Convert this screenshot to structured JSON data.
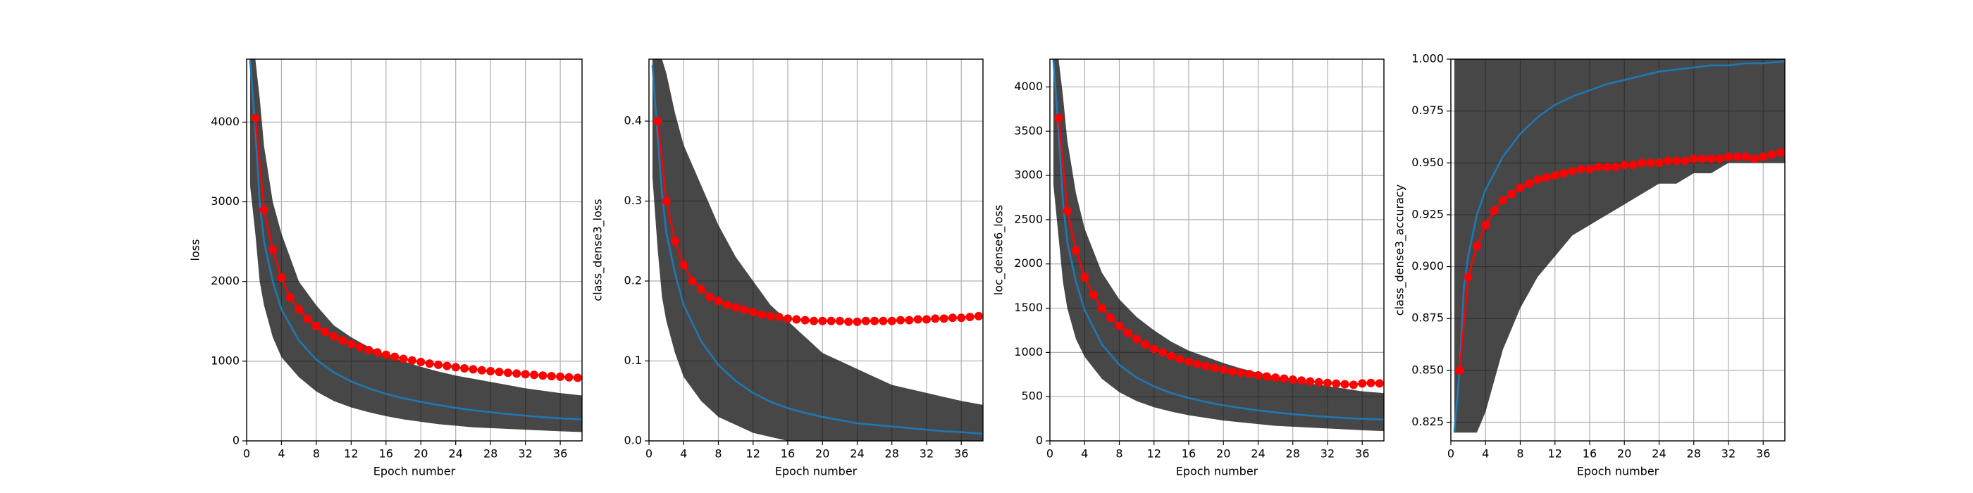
{
  "chart_data": [
    {
      "type": "line",
      "xlabel": "Epoch number",
      "ylabel": "loss",
      "xlim": [
        0,
        38.5
      ],
      "xticks": [
        0,
        4,
        8,
        12,
        16,
        20,
        24,
        28,
        32,
        36
      ],
      "ylim": [
        0,
        4790
      ],
      "yticks": [
        0,
        1000,
        2000,
        3000,
        4000
      ],
      "grid": true,
      "band": {
        "color": "#000000",
        "x": [
          0.4,
          1,
          1.5,
          2,
          3,
          4,
          6,
          8,
          10,
          12,
          14,
          16,
          18,
          20,
          22,
          24,
          26,
          28,
          30,
          32,
          34,
          36,
          38.5
        ],
        "lower": [
          3200,
          2600,
          2000,
          1700,
          1300,
          1050,
          800,
          620,
          500,
          420,
          360,
          310,
          270,
          240,
          210,
          190,
          170,
          160,
          150,
          140,
          130,
          120,
          110
        ],
        "upper": [
          4790,
          4790,
          4300,
          3700,
          3000,
          2600,
          2000,
          1700,
          1450,
          1300,
          1180,
          1080,
          1000,
          930,
          870,
          820,
          780,
          740,
          700,
          660,
          630,
          600,
          570
        ]
      },
      "series": [
        {
          "color": "#1f77b4",
          "marker": false,
          "x": [
            0.4,
            1,
            1.5,
            2,
            3,
            4,
            6,
            8,
            10,
            12,
            14,
            16,
            18,
            20,
            22,
            24,
            26,
            28,
            30,
            32,
            34,
            36,
            38.5
          ],
          "values": [
            4780,
            3900,
            3000,
            2500,
            2000,
            1650,
            1260,
            1020,
            860,
            745,
            660,
            590,
            535,
            490,
            450,
            415,
            385,
            360,
            337,
            316,
            298,
            283,
            270
          ]
        },
        {
          "color": "#ff0000",
          "marker": true,
          "x": [
            1,
            2,
            3,
            4,
            5,
            6,
            7,
            8,
            9,
            10,
            11,
            12,
            13,
            14,
            15,
            16,
            17,
            18,
            19,
            20,
            21,
            22,
            23,
            24,
            25,
            26,
            27,
            28,
            29,
            30,
            31,
            32,
            33,
            34,
            35,
            36,
            37,
            38
          ],
          "values": [
            4050,
            2900,
            2400,
            2050,
            1800,
            1650,
            1530,
            1440,
            1370,
            1310,
            1260,
            1215,
            1175,
            1140,
            1110,
            1080,
            1055,
            1030,
            1010,
            990,
            970,
            955,
            940,
            925,
            910,
            898,
            886,
            875,
            865,
            855,
            845,
            836,
            828,
            820,
            812,
            805,
            798,
            792
          ]
        }
      ]
    },
    {
      "type": "line",
      "xlabel": "Epoch number",
      "ylabel": "class_dense3_loss",
      "xlim": [
        0,
        38.5
      ],
      "xticks": [
        0,
        4,
        8,
        12,
        16,
        20,
        24,
        28,
        32,
        36
      ],
      "ylim": [
        0,
        0.4775
      ],
      "yticks": [
        {
          "value": 0,
          "label": "0.0"
        },
        0.1,
        0.2,
        0.3,
        0.4
      ],
      "grid": true,
      "band": {
        "color": "#000000",
        "x": [
          0.4,
          1,
          1.5,
          2,
          3,
          4,
          6,
          8,
          10,
          12,
          14,
          16,
          18,
          20,
          22,
          24,
          26,
          28,
          30,
          32,
          34,
          36,
          38.5
        ],
        "lower": [
          0.33,
          0.24,
          0.18,
          0.15,
          0.11,
          0.08,
          0.05,
          0.03,
          0.02,
          0.01,
          0.005,
          0,
          0,
          0,
          0,
          0,
          0,
          0,
          0,
          0,
          0,
          0,
          0
        ],
        "upper": [
          0.4775,
          0.4775,
          0.4775,
          0.46,
          0.41,
          0.37,
          0.32,
          0.27,
          0.23,
          0.2,
          0.17,
          0.15,
          0.13,
          0.11,
          0.1,
          0.09,
          0.08,
          0.07,
          0.065,
          0.06,
          0.055,
          0.05,
          0.045
        ]
      },
      "series": [
        {
          "color": "#1f77b4",
          "marker": false,
          "x": [
            0.4,
            1,
            1.5,
            2,
            3,
            4,
            6,
            8,
            10,
            12,
            14,
            16,
            18,
            20,
            22,
            24,
            26,
            28,
            30,
            32,
            34,
            36,
            38.5
          ],
          "values": [
            0.47,
            0.38,
            0.31,
            0.26,
            0.21,
            0.17,
            0.125,
            0.095,
            0.075,
            0.06,
            0.049,
            0.041,
            0.035,
            0.03,
            0.026,
            0.022,
            0.02,
            0.018,
            0.016,
            0.014,
            0.012,
            0.011,
            0.009
          ]
        },
        {
          "color": "#ff0000",
          "marker": true,
          "x": [
            1,
            2,
            3,
            4,
            5,
            6,
            7,
            8,
            9,
            10,
            11,
            12,
            13,
            14,
            15,
            16,
            17,
            18,
            19,
            20,
            21,
            22,
            23,
            24,
            25,
            26,
            27,
            28,
            29,
            30,
            31,
            32,
            33,
            34,
            35,
            36,
            37,
            38
          ],
          "values": [
            0.4,
            0.3,
            0.25,
            0.22,
            0.2,
            0.19,
            0.18,
            0.175,
            0.17,
            0.167,
            0.164,
            0.161,
            0.158,
            0.156,
            0.155,
            0.153,
            0.152,
            0.151,
            0.15,
            0.15,
            0.15,
            0.15,
            0.149,
            0.149,
            0.15,
            0.15,
            0.15,
            0.15,
            0.151,
            0.151,
            0.152,
            0.152,
            0.153,
            0.153,
            0.154,
            0.154,
            0.155,
            0.156
          ]
        }
      ]
    },
    {
      "type": "line",
      "xlabel": "Epoch number",
      "ylabel": "loc_dense6_loss",
      "xlim": [
        0,
        38.5
      ],
      "xticks": [
        0,
        4,
        8,
        12,
        16,
        20,
        24,
        28,
        32,
        36
      ],
      "ylim": [
        0,
        4314
      ],
      "yticks": [
        0,
        500,
        1000,
        1500,
        2000,
        2500,
        3000,
        3500,
        4000
      ],
      "grid": true,
      "band": {
        "color": "#000000",
        "x": [
          0.4,
          1,
          1.5,
          2,
          3,
          4,
          6,
          8,
          10,
          12,
          14,
          16,
          18,
          20,
          22,
          24,
          26,
          28,
          30,
          32,
          34,
          36,
          38.5
        ],
        "lower": [
          2900,
          2300,
          1800,
          1500,
          1150,
          950,
          700,
          550,
          450,
          380,
          330,
          290,
          260,
          230,
          210,
          190,
          170,
          160,
          150,
          140,
          130,
          120,
          110
        ],
        "upper": [
          4314,
          4314,
          3900,
          3400,
          2800,
          2400,
          1900,
          1600,
          1400,
          1250,
          1120,
          1020,
          950,
          880,
          820,
          770,
          730,
          690,
          650,
          620,
          590,
          560,
          540
        ]
      },
      "series": [
        {
          "color": "#1f77b4",
          "marker": false,
          "x": [
            0.4,
            1,
            1.5,
            2,
            3,
            4,
            6,
            8,
            10,
            12,
            14,
            16,
            18,
            20,
            22,
            24,
            26,
            28,
            30,
            32,
            34,
            36,
            38.5
          ],
          "values": [
            4314,
            3500,
            2700,
            2250,
            1800,
            1480,
            1090,
            860,
            715,
            615,
            540,
            485,
            440,
            402,
            372,
            345,
            322,
            302,
            285,
            271,
            259,
            249,
            241
          ]
        },
        {
          "color": "#ff0000",
          "marker": true,
          "x": [
            1,
            2,
            3,
            4,
            5,
            6,
            7,
            8,
            9,
            10,
            11,
            12,
            13,
            14,
            15,
            16,
            17,
            18,
            19,
            20,
            21,
            22,
            23,
            24,
            25,
            26,
            27,
            28,
            29,
            30,
            31,
            32,
            33,
            34,
            35,
            36,
            37,
            38
          ],
          "values": [
            3650,
            2600,
            2150,
            1850,
            1650,
            1500,
            1390,
            1300,
            1220,
            1150,
            1090,
            1040,
            1000,
            960,
            925,
            895,
            870,
            845,
            825,
            805,
            785,
            770,
            755,
            740,
            727,
            715,
            703,
            692,
            682,
            672,
            663,
            655,
            647,
            640,
            634,
            650,
            655,
            650
          ]
        }
      ]
    },
    {
      "type": "line",
      "xlabel": "Epoch number",
      "ylabel": "class_dense3_accuracy",
      "xlim": [
        0,
        38.5
      ],
      "xticks": [
        0,
        4,
        8,
        12,
        16,
        20,
        24,
        28,
        32,
        36
      ],
      "ylim": [
        0.816,
        1.0
      ],
      "yticks": [
        0.825,
        {
          "value": 0.85,
          "label": "0.850"
        },
        0.875,
        {
          "value": 0.9,
          "label": "0.900"
        },
        0.925,
        {
          "value": 0.95,
          "label": "0.950"
        },
        0.975,
        {
          "value": 1.0,
          "label": "1.000"
        }
      ],
      "grid": true,
      "band": {
        "color": "#000000",
        "x": [
          0.4,
          1,
          1.5,
          2,
          3,
          4,
          6,
          8,
          10,
          12,
          14,
          16,
          18,
          20,
          22,
          24,
          26,
          28,
          30,
          32,
          34,
          36,
          38.5
        ],
        "lower": [
          0.82,
          0.82,
          0.82,
          0.82,
          0.82,
          0.83,
          0.86,
          0.88,
          0.895,
          0.905,
          0.915,
          0.92,
          0.925,
          0.93,
          0.935,
          0.94,
          0.94,
          0.945,
          0.945,
          0.95,
          0.95,
          0.95,
          0.95
        ],
        "upper": [
          1.0,
          1.0,
          1.0,
          1.0,
          1.0,
          1.0,
          1.0,
          1.0,
          1.0,
          1.0,
          1.0,
          1.0,
          1.0,
          1.0,
          1.0,
          1.0,
          1.0,
          1.0,
          1.0,
          1.0,
          1.0,
          1.0,
          1.0
        ]
      },
      "series": [
        {
          "color": "#1f77b4",
          "marker": false,
          "x": [
            0.4,
            1,
            1.5,
            2,
            3,
            4,
            6,
            8,
            10,
            12,
            14,
            16,
            18,
            20,
            22,
            24,
            26,
            28,
            30,
            32,
            34,
            36,
            38.5
          ],
          "values": [
            0.82,
            0.85,
            0.89,
            0.905,
            0.925,
            0.937,
            0.953,
            0.964,
            0.972,
            0.978,
            0.982,
            0.985,
            0.988,
            0.99,
            0.992,
            0.994,
            0.995,
            0.996,
            0.997,
            0.997,
            0.998,
            0.998,
            0.999
          ]
        },
        {
          "color": "#ff0000",
          "marker": true,
          "x": [
            1,
            2,
            3,
            4,
            5,
            6,
            7,
            8,
            9,
            10,
            11,
            12,
            13,
            14,
            15,
            16,
            17,
            18,
            19,
            20,
            21,
            22,
            23,
            24,
            25,
            26,
            27,
            28,
            29,
            30,
            31,
            32,
            33,
            34,
            35,
            36,
            37,
            38
          ],
          "values": [
            0.85,
            0.895,
            0.91,
            0.92,
            0.927,
            0.932,
            0.935,
            0.938,
            0.94,
            0.942,
            0.943,
            0.944,
            0.945,
            0.946,
            0.947,
            0.947,
            0.948,
            0.948,
            0.948,
            0.949,
            0.949,
            0.95,
            0.95,
            0.95,
            0.951,
            0.951,
            0.951,
            0.952,
            0.952,
            0.952,
            0.952,
            0.953,
            0.953,
            0.953,
            0.952,
            0.953,
            0.954,
            0.955
          ]
        }
      ]
    }
  ]
}
